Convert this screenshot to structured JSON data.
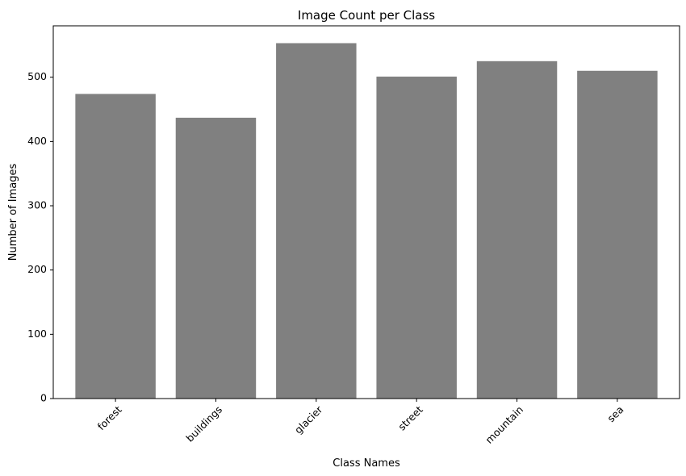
{
  "chart_data": {
    "type": "bar",
    "title": "Image Count per Class",
    "xlabel": "Class Names",
    "ylabel": "Number of Images",
    "categories": [
      "forest",
      "buildings",
      "glacier",
      "street",
      "mountain",
      "sea"
    ],
    "values": [
      474,
      437,
      553,
      501,
      525,
      510
    ],
    "ylim": [
      0,
      580
    ],
    "yticks": [
      0,
      100,
      200,
      300,
      400,
      500
    ],
    "bar_color": "#808080",
    "grid": false,
    "xtick_rotation_deg": 45
  }
}
